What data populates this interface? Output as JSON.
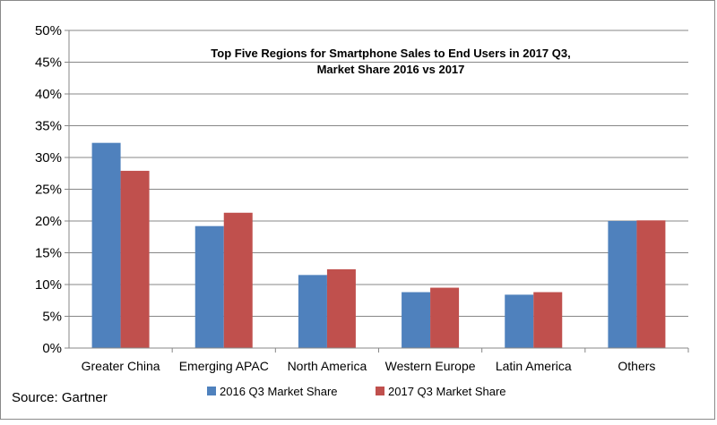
{
  "chart_data": {
    "type": "bar",
    "title_lines": [
      "Top Five Regions for Smartphone Sales to End Users in 2017 Q3,",
      "Market Share 2016 vs 2017"
    ],
    "categories": [
      "Greater China",
      "Emerging APAC",
      "North America",
      "Western Europe",
      "Latin America",
      "Others"
    ],
    "series": [
      {
        "name": "2016 Q3 Market Share",
        "color": "#4f81bd",
        "values": [
          32.3,
          19.2,
          11.5,
          8.8,
          8.4,
          20.0
        ]
      },
      {
        "name": "2017 Q3 Market Share",
        "color": "#c0504d",
        "values": [
          27.9,
          21.3,
          12.4,
          9.5,
          8.8,
          20.1
        ]
      }
    ],
    "ylim": [
      0,
      50
    ],
    "yticks": [
      "0%",
      "5%",
      "10%",
      "15%",
      "20%",
      "25%",
      "30%",
      "35%",
      "40%",
      "45%",
      "50%"
    ],
    "grid": true,
    "legend_position": "bottom",
    "source": "Source: Gartner"
  }
}
